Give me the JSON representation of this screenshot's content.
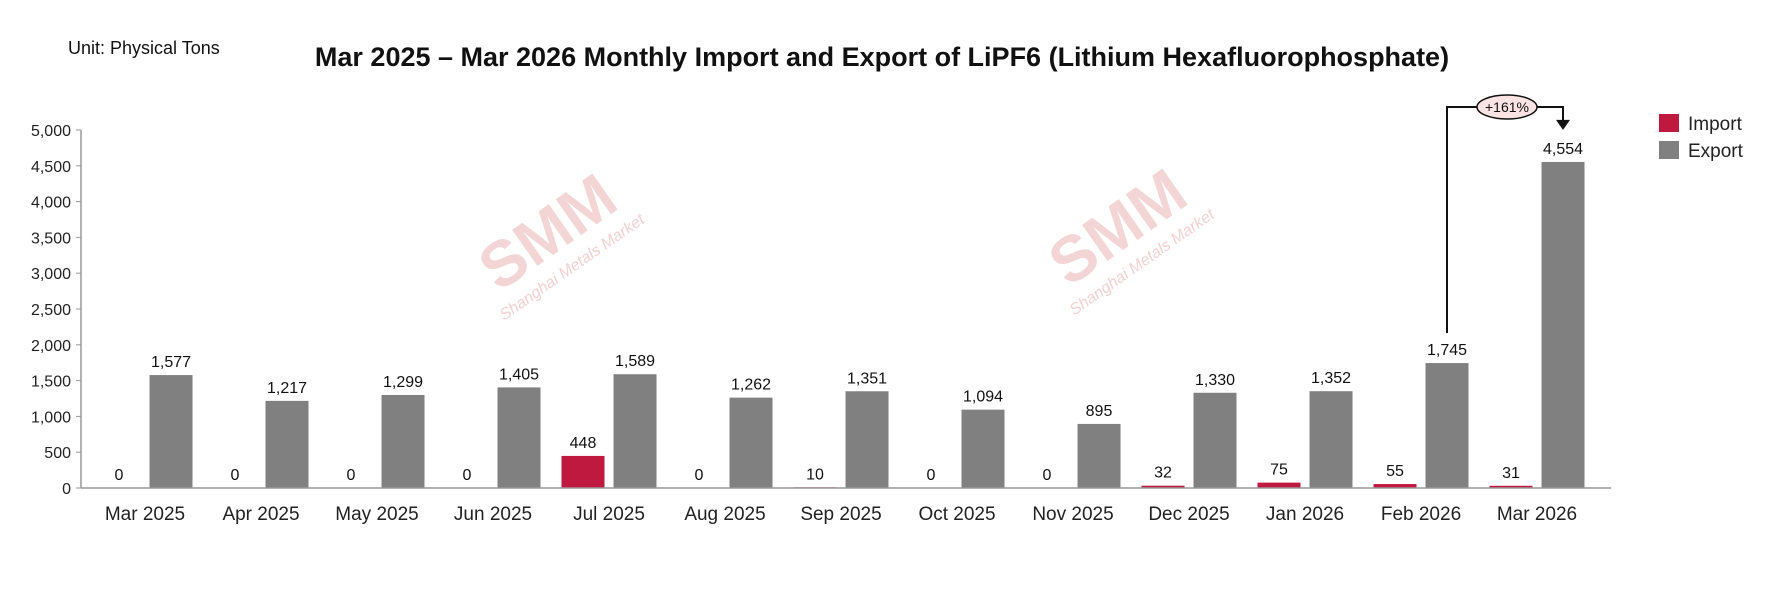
{
  "chart_data": {
    "type": "bar",
    "title": "Mar 2025 – Mar 2026 Monthly Import and Export of LiPF6 (Lithium Hexafluorophosphate)",
    "unit_label": "Unit: Physical Tons",
    "xlabel": "",
    "ylabel": "",
    "ylim": [
      0,
      5000
    ],
    "yticks": [
      0,
      500,
      1000,
      1500,
      2000,
      2500,
      3000,
      3500,
      4000,
      4500,
      5000
    ],
    "ytick_labels": [
      "0",
      "500",
      "1,000",
      "1,500",
      "2,000",
      "2,500",
      "3,000",
      "3,500",
      "4,000",
      "4,500",
      "5,000"
    ],
    "grid": false,
    "legend_position": "top-right",
    "categories": [
      "Mar 2025",
      "Apr 2025",
      "May 2025",
      "Jun 2025",
      "Jul 2025",
      "Aug 2025",
      "Sep 2025",
      "Oct 2025",
      "Nov 2025",
      "Dec 2025",
      "Jan 2026",
      "Feb 2026",
      "Mar 2026"
    ],
    "series": [
      {
        "name": "Import",
        "color": "#c0193f",
        "values": [
          0,
          0,
          0,
          0,
          448,
          0,
          10,
          0,
          0,
          32,
          75,
          55,
          31
        ],
        "labels": [
          "0",
          "0",
          "0",
          "0",
          "448",
          "0",
          "10",
          "0",
          "0",
          "32",
          "75",
          "55",
          "31"
        ]
      },
      {
        "name": "Export",
        "color": "#808080",
        "values": [
          1577,
          1217,
          1299,
          1405,
          1589,
          1262,
          1351,
          1094,
          895,
          1330,
          1352,
          1745,
          4554
        ],
        "labels": [
          "1,577",
          "1,217",
          "1,299",
          "1,405",
          "1,589",
          "1,262",
          "1,351",
          "1,094",
          "895",
          "1,330",
          "1,352",
          "1,745",
          "4,554"
        ]
      }
    ],
    "annotations": [
      {
        "text": "+161%",
        "from_category": "Feb 2026",
        "to_category": "Mar 2026",
        "series": "Export"
      }
    ]
  },
  "watermark": {
    "logo": "SMM",
    "text": "Shanghai Metals Market"
  }
}
